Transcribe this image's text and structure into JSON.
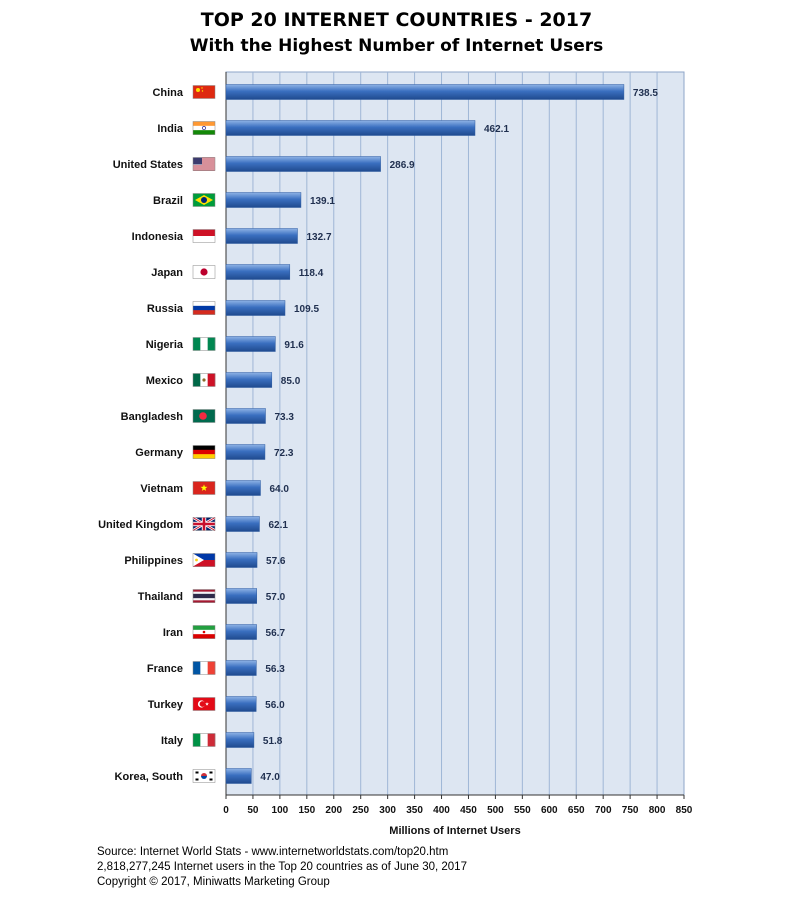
{
  "chart_data": {
    "type": "bar",
    "orientation": "horizontal",
    "title": "TOP 20 INTERNET COUNTRIES  - 2017",
    "subtitle": "With the Highest Number of Internet Users",
    "categories": [
      "China",
      "India",
      "United States",
      "Brazil",
      "Indonesia",
      "Japan",
      "Russia",
      "Nigeria",
      "Mexico",
      "Bangladesh",
      "Germany",
      "Vietnam",
      "United Kingdom",
      "Philippines",
      "Thailand",
      "Iran",
      "France",
      "Turkey",
      "Italy",
      "Korea, South"
    ],
    "values": [
      738.5,
      462.1,
      286.9,
      139.1,
      132.7,
      118.4,
      109.5,
      91.6,
      85.0,
      73.3,
      72.3,
      64.0,
      62.1,
      57.6,
      57.0,
      56.7,
      56.3,
      56.0,
      51.8,
      47.0
    ],
    "value_labels": [
      "738.5",
      "462.1",
      "286.9",
      "139.1",
      "132.7",
      "118.4",
      "109.5",
      "91.6",
      "85.0",
      "73.3",
      "72.3",
      "64.0",
      "62.1",
      "57.6",
      "57.0",
      "56.7",
      "56.3",
      "56.0",
      "51.8",
      "47.0"
    ],
    "flags": [
      "china-flag-icon",
      "india-flag-icon",
      "usa-flag-icon",
      "brazil-flag-icon",
      "indonesia-flag-icon",
      "japan-flag-icon",
      "russia-flag-icon",
      "nigeria-flag-icon",
      "mexico-flag-icon",
      "bangladesh-flag-icon",
      "germany-flag-icon",
      "vietnam-flag-icon",
      "uk-flag-icon",
      "philippines-flag-icon",
      "thailand-flag-icon",
      "iran-flag-icon",
      "france-flag-icon",
      "turkey-flag-icon",
      "italy-flag-icon",
      "korea-flag-icon"
    ],
    "xlabel": "Millions of Internet Users",
    "xlim": [
      0,
      850
    ],
    "xticks": [
      0,
      50,
      100,
      150,
      200,
      250,
      300,
      350,
      400,
      450,
      500,
      550,
      600,
      650,
      700,
      750,
      800,
      850
    ],
    "grid": "vertical",
    "colors": {
      "bar": "#3a6fc0",
      "plot_bg": "#dde6f2",
      "grid": "#9fb6d6"
    }
  },
  "footer": {
    "line1": "Source: Internet World Stats  -  www.internetworldstats.com/top20.htm",
    "line2": "2,818,277,245 Internet users in the Top 20 countries as of June 30, 2017",
    "line3": "Copyright © 2017, Miniwatts Marketing Group"
  }
}
